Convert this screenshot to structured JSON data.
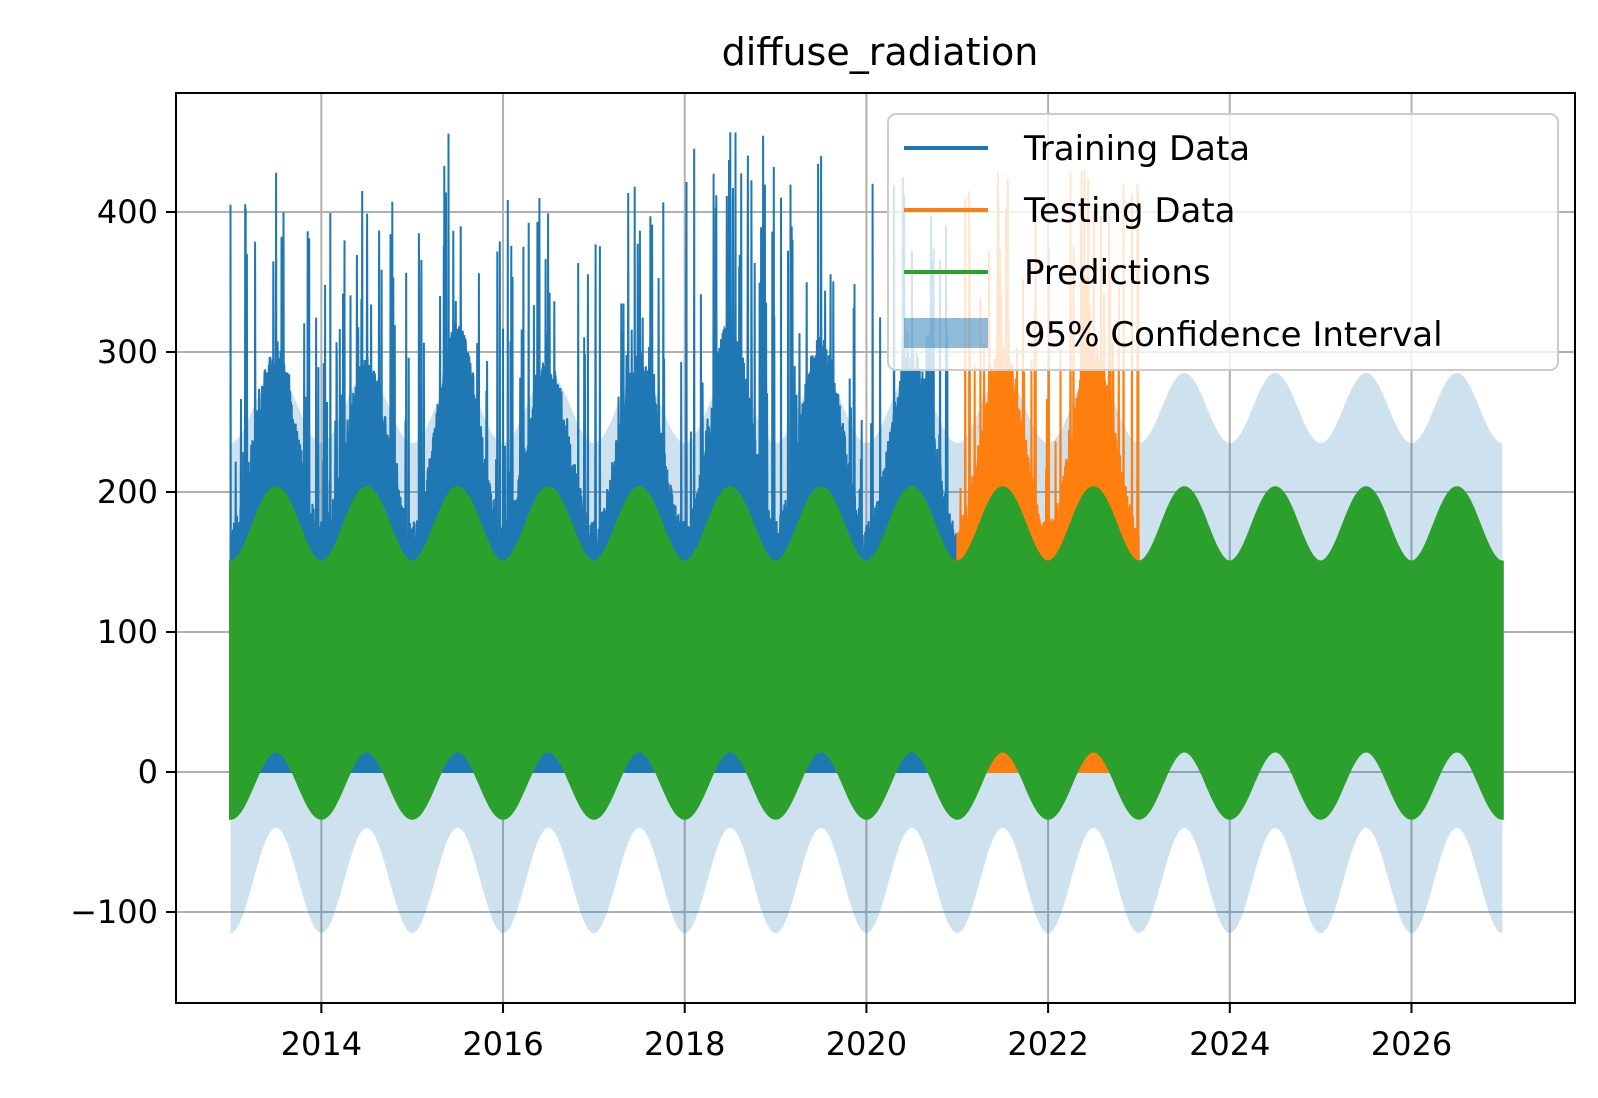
{
  "chart_data": {
    "type": "line",
    "title": "diffuse_radiation",
    "xlabel": "",
    "ylabel": "",
    "xlim": [
      2012.4,
      2027.8
    ],
    "ylim": [
      -165,
      485
    ],
    "x_ticks": [
      {
        "value": 2014,
        "label": "2014"
      },
      {
        "value": 2016,
        "label": "2016"
      },
      {
        "value": 2018,
        "label": "2018"
      },
      {
        "value": 2020,
        "label": "2020"
      },
      {
        "value": 2022,
        "label": "2022"
      },
      {
        "value": 2024,
        "label": "2024"
      },
      {
        "value": 2026,
        "label": "2026"
      }
    ],
    "y_ticks": [
      {
        "value": -100,
        "label": "−100"
      },
      {
        "value": 0,
        "label": "0"
      },
      {
        "value": 100,
        "label": "100"
      },
      {
        "value": 200,
        "label": "200"
      },
      {
        "value": 300,
        "label": "300"
      },
      {
        "value": 400,
        "label": "400"
      }
    ],
    "grid": true,
    "legend_position": "top-right",
    "series": [
      {
        "name": "Training Data",
        "color": "#1f77b4",
        "kind": "band",
        "x_range": [
          2013.0,
          2021.0
        ],
        "annual_peaks": [
          {
            "x": 2013.5,
            "y": 428
          },
          {
            "x": 2014.45,
            "y": 415
          },
          {
            "x": 2015.4,
            "y": 456
          },
          {
            "x": 2016.4,
            "y": 410
          },
          {
            "x": 2017.45,
            "y": 418
          },
          {
            "x": 2018.5,
            "y": 457
          },
          {
            "x": 2019.5,
            "y": 440
          },
          {
            "x": 2020.4,
            "y": 425
          }
        ],
        "winter_max": 150,
        "min": 0
      },
      {
        "name": "Testing Data",
        "color": "#ff7f0e",
        "kind": "band",
        "x_range": [
          2021.0,
          2023.0
        ],
        "annual_peaks": [
          {
            "x": 2021.45,
            "y": 428
          },
          {
            "x": 2022.4,
            "y": 430
          }
        ],
        "winter_max": 150,
        "min": 0
      },
      {
        "name": "Predictions",
        "color": "#2ca02c",
        "kind": "band",
        "x_range": [
          2013.0,
          2027.0
        ],
        "upper_summer": 203,
        "upper_winter": 150,
        "lower_summer": 15,
        "lower_winter": -33
      },
      {
        "name": "95% Confidence Interval",
        "color": "#1f77b4",
        "kind": "interval",
        "x_range": [
          2013.0,
          2027.0
        ],
        "upper_summer": 285,
        "upper_winter": 235,
        "lower_summer": -40,
        "lower_winter": -115
      }
    ]
  }
}
